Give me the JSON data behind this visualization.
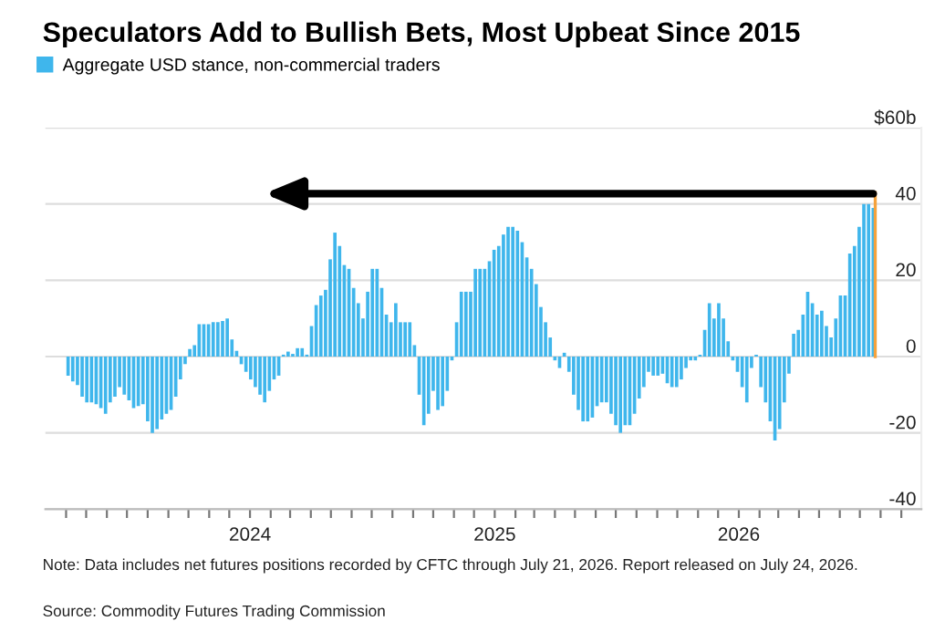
{
  "chart_data": {
    "type": "bar",
    "title": "Speculators Add to Bullish Bets, Most Upbeat Since 2015",
    "annotations": [
      "Note: Data includes net futures positions recorded by CFTC through July 21, 2026. Report released on July 24, 2026.",
      "Source: Commodity Futures Trading Commission"
    ],
    "x": [
      "2023-04-04",
      "2023-04-11",
      "2023-04-18",
      "2023-04-25",
      "2023-05-02",
      "2023-05-09",
      "2023-05-16",
      "2023-05-23",
      "2023-05-30",
      "2023-06-06",
      "2023-06-13",
      "2023-06-20",
      "2023-06-27",
      "2023-07-04",
      "2023-07-11",
      "2023-07-18",
      "2023-07-25",
      "2023-08-01",
      "2023-08-08",
      "2023-08-15",
      "2023-08-22",
      "2023-08-29",
      "2023-09-05",
      "2023-09-12",
      "2023-09-19",
      "2023-09-26",
      "2023-10-03",
      "2023-10-10",
      "2023-10-17",
      "2023-10-24",
      "2023-10-31",
      "2023-11-07",
      "2023-11-14",
      "2023-11-21",
      "2023-11-28",
      "2023-12-05",
      "2023-12-12",
      "2023-12-19",
      "2023-12-26",
      "2024-01-02",
      "2024-01-09",
      "2024-01-16",
      "2024-01-23",
      "2024-01-30",
      "2024-02-06",
      "2024-02-13",
      "2024-02-20",
      "2024-02-27",
      "2024-03-05",
      "2024-03-12",
      "2024-03-19",
      "2024-03-26",
      "2024-04-02",
      "2024-04-09",
      "2024-04-16",
      "2024-04-23",
      "2024-04-30",
      "2024-05-07",
      "2024-05-14",
      "2024-05-21",
      "2024-05-28",
      "2024-06-04",
      "2024-06-11",
      "2024-06-18",
      "2024-06-25",
      "2024-07-02",
      "2024-07-09",
      "2024-07-16",
      "2024-07-23",
      "2024-07-30",
      "2024-08-06",
      "2024-08-13",
      "2024-08-20",
      "2024-08-27",
      "2024-09-03",
      "2024-09-10",
      "2024-09-17",
      "2024-09-24",
      "2024-10-01",
      "2024-10-08",
      "2024-10-15",
      "2024-10-22",
      "2024-10-29",
      "2024-11-05",
      "2024-11-12",
      "2024-11-19",
      "2024-11-26",
      "2024-12-03",
      "2024-12-10",
      "2024-12-17",
      "2024-12-24",
      "2024-12-31",
      "2025-01-07",
      "2025-01-14",
      "2025-01-21",
      "2025-01-28",
      "2025-02-04",
      "2025-02-11",
      "2025-02-18",
      "2025-02-25",
      "2025-03-04",
      "2025-03-11",
      "2025-03-18",
      "2025-03-25",
      "2025-04-01",
      "2025-04-08",
      "2025-04-15",
      "2025-04-22",
      "2025-04-29",
      "2025-05-06",
      "2025-05-13",
      "2025-05-20",
      "2025-05-27",
      "2025-06-03",
      "2025-06-10",
      "2025-06-17",
      "2025-06-24",
      "2025-07-01",
      "2025-07-08",
      "2025-07-15",
      "2025-07-22",
      "2025-07-29",
      "2025-08-05",
      "2025-08-12",
      "2025-08-19",
      "2025-08-26",
      "2025-09-02",
      "2025-09-09",
      "2025-09-16",
      "2025-09-23",
      "2025-09-30",
      "2025-10-07",
      "2025-10-14",
      "2025-10-21",
      "2025-10-28",
      "2025-11-04",
      "2025-11-11",
      "2025-11-18",
      "2025-11-25",
      "2025-12-02",
      "2025-12-09",
      "2025-12-16",
      "2025-12-23",
      "2025-12-30",
      "2026-01-06",
      "2026-01-13",
      "2026-01-20",
      "2026-01-27",
      "2026-02-03",
      "2026-02-10",
      "2026-02-17",
      "2026-02-24",
      "2026-03-03",
      "2026-03-10",
      "2026-03-17",
      "2026-03-24",
      "2026-03-31",
      "2026-04-07",
      "2026-04-14",
      "2026-04-21",
      "2026-04-28",
      "2026-05-05",
      "2026-05-12",
      "2026-05-19",
      "2026-05-26",
      "2026-06-02",
      "2026-06-09",
      "2026-06-16",
      "2026-06-23",
      "2026-06-30",
      "2026-07-07",
      "2026-07-14",
      "2026-07-21"
    ],
    "series": [
      {
        "name": "Aggregate USD stance, non-commercial traders",
        "color": "#3fb6ec",
        "values": [
          -5,
          -6.5,
          -7.5,
          -10.5,
          -12,
          -12,
          -12.5,
          -13.5,
          -15,
          -12,
          -10.5,
          -8,
          -10,
          -11.5,
          -13.5,
          -13,
          -12.5,
          -17,
          -20,
          -19,
          -16.5,
          -15,
          -14,
          -10.5,
          -6,
          -2,
          2,
          3,
          8.5,
          8.5,
          8.5,
          9,
          9,
          9.3,
          10,
          4.5,
          1.5,
          -2,
          -4,
          -6,
          -8,
          -10,
          -12,
          -9,
          -6,
          -5,
          0.5,
          1.3,
          0.7,
          2.2,
          2.2,
          0.5,
          8,
          13.5,
          16,
          17.5,
          25.5,
          32.5,
          29,
          24,
          23,
          18,
          14,
          10,
          17,
          23,
          23,
          18,
          11,
          9,
          14,
          9,
          9,
          9,
          3,
          -10,
          -18,
          -15,
          -9,
          -14,
          -13,
          -9,
          -1,
          9,
          17,
          17,
          17,
          23,
          23,
          23,
          25,
          28,
          29,
          32,
          34,
          34,
          33,
          30,
          26,
          23,
          19,
          13,
          9,
          5,
          -1,
          -3,
          1,
          -4,
          -10,
          -14,
          -17,
          -17,
          -16,
          -13,
          -12,
          -12,
          -15,
          -18,
          -20,
          -18,
          -18,
          -15,
          -11,
          -8,
          -4,
          -5,
          -5,
          -4.5,
          -7,
          -8,
          -8,
          -6,
          -3,
          -1,
          -1,
          0.5,
          7,
          14,
          10,
          14,
          10,
          4,
          -1,
          -4,
          -8,
          -12,
          -3,
          0.5,
          -8,
          -12,
          -17,
          -22,
          -19,
          -12,
          -4.5,
          6,
          7,
          11,
          17,
          14,
          11,
          12,
          8,
          5,
          10,
          16,
          16,
          27,
          29,
          34,
          40,
          40,
          39
        ]
      }
    ],
    "xlim": [
      "2023-03-01",
      "2026-10-01"
    ],
    "xticks": [
      {
        "value": "2023-04-01",
        "label": null
      },
      {
        "value": "2023-05-01",
        "label": null
      },
      {
        "value": "2023-06-01",
        "label": null
      },
      {
        "value": "2023-07-01",
        "label": null
      },
      {
        "value": "2023-08-01",
        "label": null
      },
      {
        "value": "2023-09-01",
        "label": null
      },
      {
        "value": "2023-10-01",
        "label": null
      },
      {
        "value": "2023-11-01",
        "label": null
      },
      {
        "value": "2023-12-01",
        "label": null
      },
      {
        "value": "2024-01-01",
        "label": "2024"
      },
      {
        "value": "2024-02-01",
        "label": null
      },
      {
        "value": "2024-03-01",
        "label": null
      },
      {
        "value": "2024-04-01",
        "label": null
      },
      {
        "value": "2024-05-01",
        "label": null
      },
      {
        "value": "2024-06-01",
        "label": null
      },
      {
        "value": "2024-07-01",
        "label": null
      },
      {
        "value": "2024-08-01",
        "label": null
      },
      {
        "value": "2024-09-01",
        "label": null
      },
      {
        "value": "2024-10-01",
        "label": null
      },
      {
        "value": "2024-11-01",
        "label": null
      },
      {
        "value": "2024-12-01",
        "label": null
      },
      {
        "value": "2025-01-01",
        "label": "2025"
      },
      {
        "value": "2025-02-01",
        "label": null
      },
      {
        "value": "2025-03-01",
        "label": null
      },
      {
        "value": "2025-04-01",
        "label": null
      },
      {
        "value": "2025-05-01",
        "label": null
      },
      {
        "value": "2025-06-01",
        "label": null
      },
      {
        "value": "2025-07-01",
        "label": null
      },
      {
        "value": "2025-08-01",
        "label": null
      },
      {
        "value": "2025-09-01",
        "label": null
      },
      {
        "value": "2025-10-01",
        "label": null
      },
      {
        "value": "2025-11-01",
        "label": null
      },
      {
        "value": "2025-12-01",
        "label": null
      },
      {
        "value": "2026-01-01",
        "label": "2026"
      },
      {
        "value": "2026-02-01",
        "label": null
      },
      {
        "value": "2026-03-01",
        "label": null
      },
      {
        "value": "2026-04-01",
        "label": null
      },
      {
        "value": "2026-05-01",
        "label": null
      },
      {
        "value": "2026-06-01",
        "label": null
      },
      {
        "value": "2026-07-01",
        "label": null
      },
      {
        "value": "2026-08-01",
        "label": null
      },
      {
        "value": "2026-09-01",
        "label": null
      }
    ],
    "ylim": [
      -40,
      60
    ],
    "yticks": [
      -40,
      -20,
      0,
      20,
      40,
      {
        "value": 60,
        "label": "$60b"
      }
    ],
    "grid": "y",
    "legend": "top left",
    "ref_lines": [
      {
        "axis": "x",
        "value": "2026-07-24",
        "label": null,
        "color": "#f5a23c"
      }
    ]
  }
}
